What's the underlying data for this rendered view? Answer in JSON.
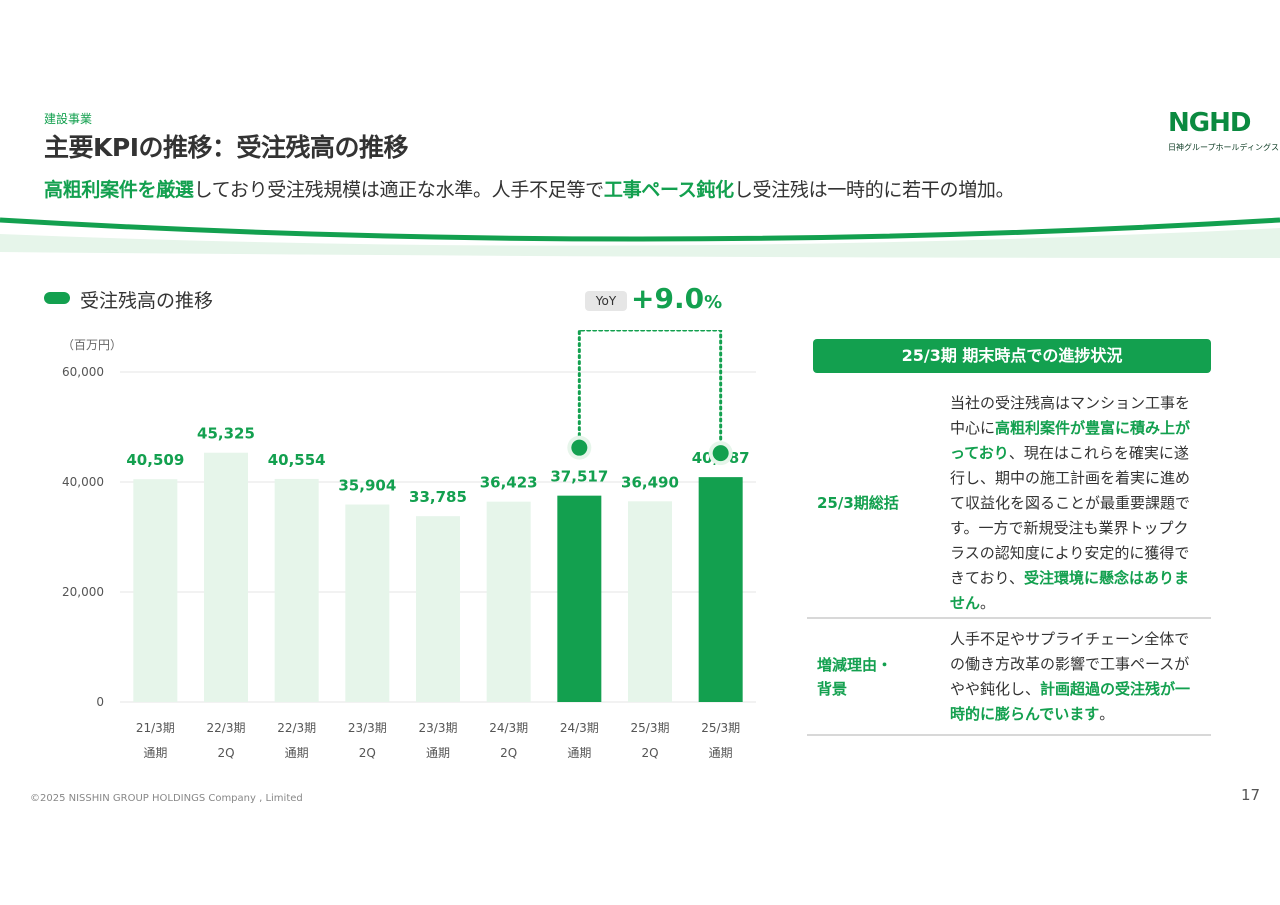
{
  "header": {
    "category": "建設事業",
    "title": "主要KPIの推移：受注残高の推移",
    "subtitle": {
      "hl1": "高粗利案件を厳選",
      "t1": "しており受注残規模は適正な水準。人手不足等で",
      "hl2": "工事ペース鈍化",
      "t2": "し受注残は一時的に若干の増加。"
    }
  },
  "logo": {
    "mark": "NGHD",
    "sub": "日神グループホールディングス"
  },
  "colors": {
    "accent": "#13a04f",
    "bar_light": "#e6f5ea",
    "bar_dark": "#13a04f",
    "grid": "#e5e5e5"
  },
  "legend": {
    "label": "受注残高の推移"
  },
  "yoy": {
    "badge": "YoY",
    "value": "+9.0",
    "unit": "%"
  },
  "chart_data": {
    "type": "bar",
    "unit_label": "（百万円）",
    "ylim": [
      0,
      60000
    ],
    "yticks": [
      "0",
      "20,000",
      "40,000",
      "60,000"
    ],
    "categories": [
      [
        "21/3期",
        "通期"
      ],
      [
        "22/3期",
        "2Q"
      ],
      [
        "22/3期",
        "通期"
      ],
      [
        "23/3期",
        "2Q"
      ],
      [
        "23/3期",
        "通期"
      ],
      [
        "24/3期",
        "2Q"
      ],
      [
        "24/3期",
        "通期"
      ],
      [
        "25/3期",
        "2Q"
      ],
      [
        "25/3期",
        "通期"
      ]
    ],
    "values": [
      40509,
      45325,
      40554,
      35904,
      33785,
      36423,
      37517,
      36490,
      40887
    ],
    "value_labels": [
      "40,509",
      "45,325",
      "40,554",
      "35,904",
      "33,785",
      "36,423",
      "37,517",
      "36,490",
      "40,887"
    ],
    "highlight": [
      6,
      8
    ],
    "grid": true
  },
  "panel": {
    "header": "25/3期 期末時点での進捗状況",
    "rows": [
      {
        "label": "25/3期総括",
        "t1": "当社の受注残高はマンション工事を中心に",
        "hl1": "高粗利案件が豊富に積み上がっており",
        "t2": "、現在はこれらを確実に遂行し、期中の施工計画を着実に進めて収益化を図ることが最重要課題です。一方で新規受注も業界トップクラスの認知度により安定的に獲得できており、",
        "hl2": "受注環境に懸念はありません",
        "t3": "。"
      },
      {
        "label_l1": "増減理由・",
        "label_l2": "背景",
        "t1": "人手不足やサプライチェーン全体での働き方改革の影響で工事ペースがやや鈍化し、",
        "hl1": "計画超過の受注残が一時的に膨らんでいます",
        "t2": "。"
      }
    ]
  },
  "footer": {
    "copyright": "©2025 NISSHIN GROUP HOLDINGS Company , Limited",
    "page": "17"
  }
}
